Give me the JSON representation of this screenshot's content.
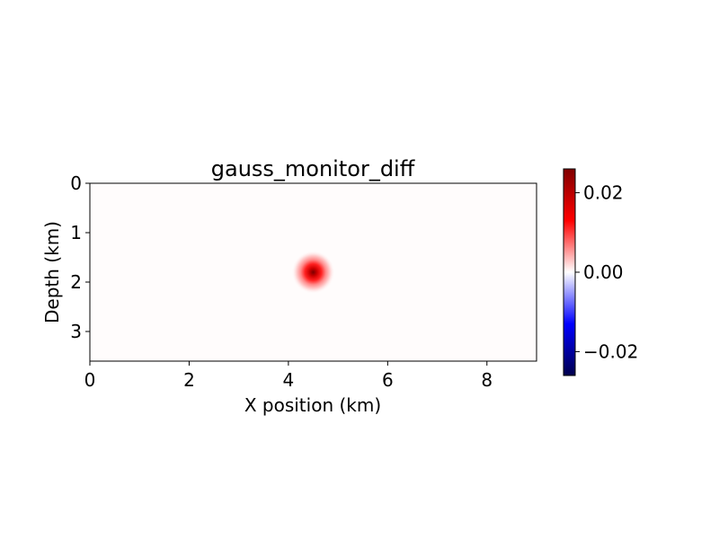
{
  "chart_data": {
    "type": "heatmap",
    "title": "gauss_monitor_diff",
    "xlabel": "X position (km)",
    "ylabel": "Depth (km)",
    "xlim": [
      0,
      9
    ],
    "ylim": [
      3.6,
      0
    ],
    "x_ticks": [
      0,
      2,
      4,
      6,
      8
    ],
    "y_ticks": [
      0,
      1,
      2,
      3
    ],
    "y_inverted": true,
    "colormap": "seismic",
    "colorbar": {
      "range": [
        -0.026,
        0.026
      ],
      "ticks": [
        "−0.02",
        "0.00",
        "0.02"
      ],
      "tick_values": [
        -0.02,
        0,
        0.02
      ],
      "placement": "right"
    },
    "field": {
      "description_type": "gaussian_anomaly",
      "center_x": 4.5,
      "center_depth": 1.8,
      "peak_value": 0.026,
      "sigma_km": 0.2
    },
    "grid": false
  }
}
